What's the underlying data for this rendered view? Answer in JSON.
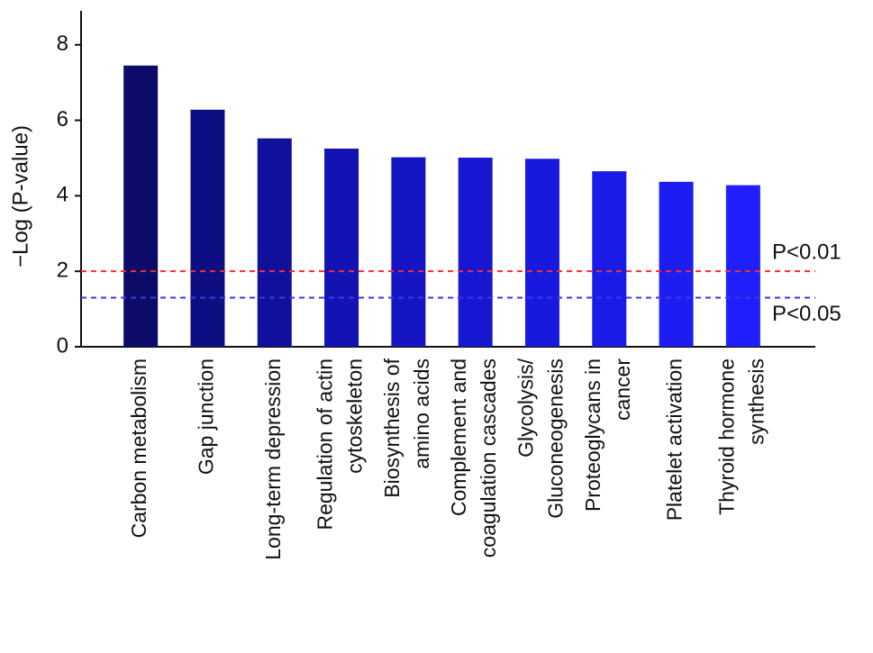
{
  "chart_data": {
    "type": "bar",
    "ylabel": "−Log (P-value)",
    "categories": [
      [
        "Carbon metabolism"
      ],
      [
        "Gap junction"
      ],
      [
        "Long-term depression"
      ],
      [
        "Regulation of actin",
        "cytoskeleton"
      ],
      [
        "Biosynthesis of",
        "amino acids"
      ],
      [
        "Complement and",
        "coagulation cascades"
      ],
      [
        "Glycolysis/",
        "Gluconeogenesis"
      ],
      [
        "Proteoglycans in",
        "cancer"
      ],
      [
        "Platelet activation"
      ],
      [
        "Thyroid hormone",
        "synthesis"
      ]
    ],
    "values": [
      7.45,
      6.28,
      5.52,
      5.25,
      5.02,
      5.01,
      4.98,
      4.65,
      4.37,
      4.28
    ],
    "colors": [
      "#0c0c68",
      "#0e0e84",
      "#10109c",
      "#1313b4",
      "#1515c4",
      "#1717d2",
      "#1919de",
      "#1b1be8",
      "#1d1df2",
      "#1f1ffb"
    ],
    "ylim": [
      0,
      8.9
    ],
    "yticks": [
      0,
      2,
      4,
      6,
      8
    ],
    "reference_lines": [
      {
        "value": 2,
        "label": "P<0.01",
        "color": "#ff2a2a"
      },
      {
        "value": 1.3,
        "label": "P<0.05",
        "color": "#3a3ae6"
      }
    ]
  }
}
